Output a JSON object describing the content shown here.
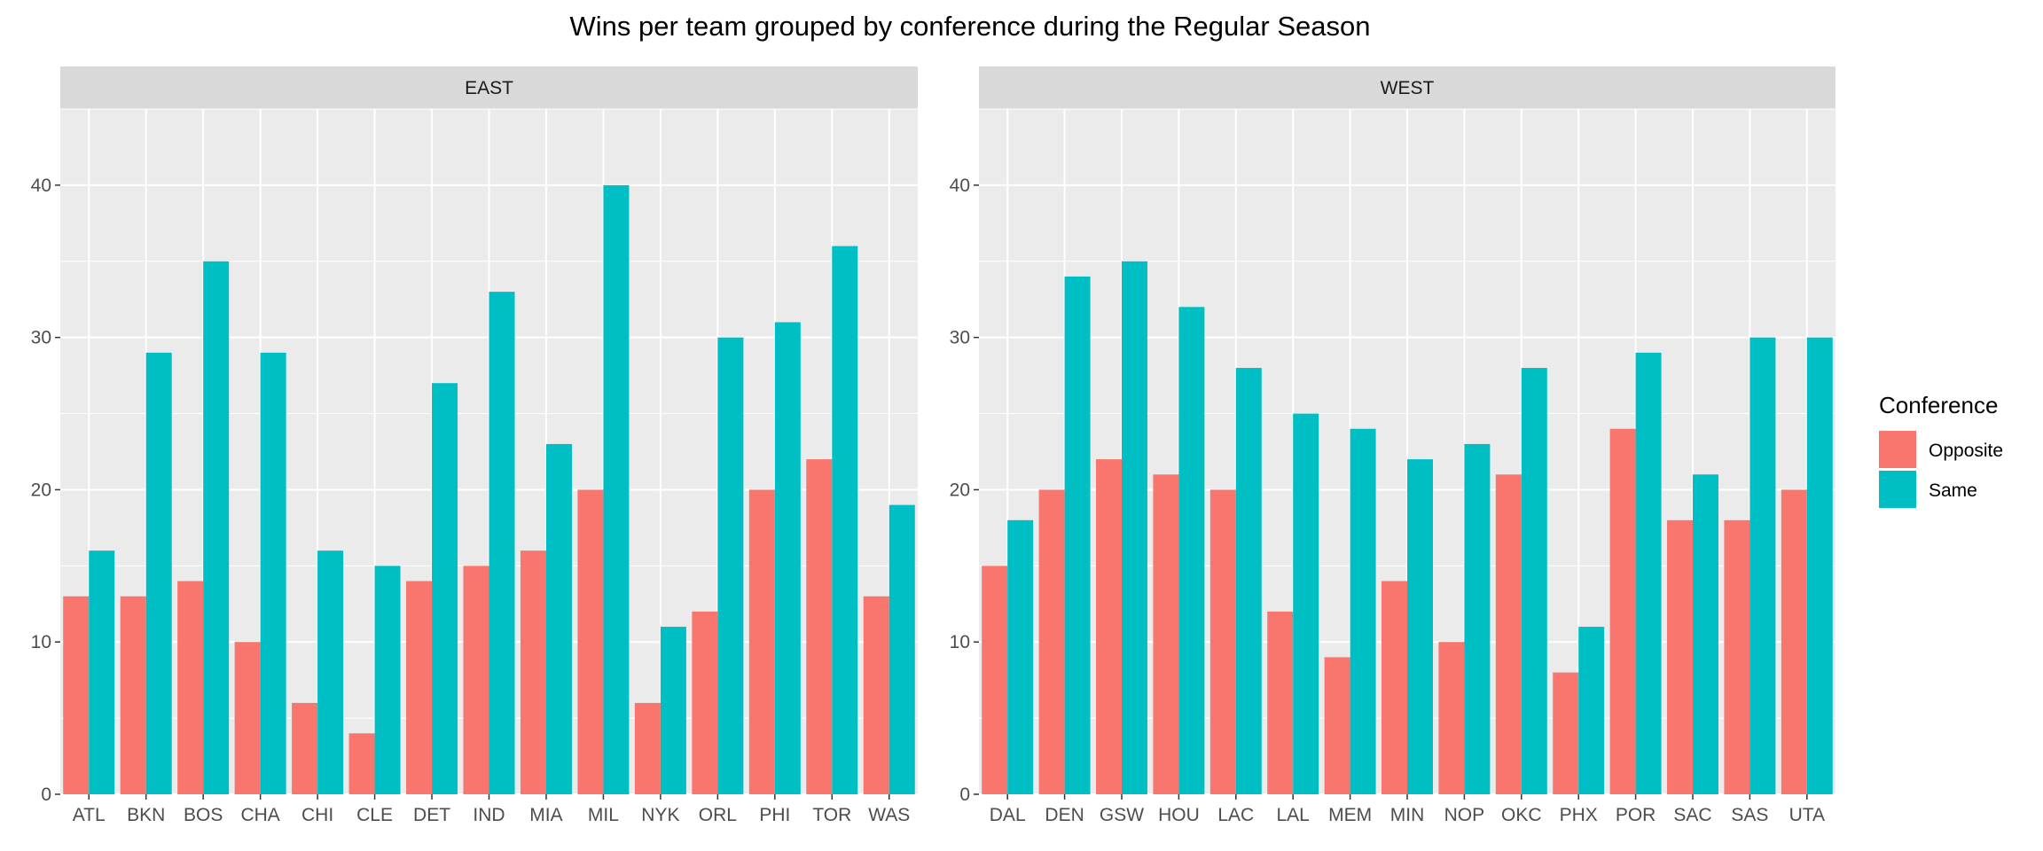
{
  "chart_data": {
    "type": "bar",
    "title": "Wins per team grouped by conference during the Regular Season",
    "xlabel": "",
    "ylabel": "",
    "ylim": [
      0,
      45
    ],
    "y_ticks": [
      0,
      10,
      20,
      30,
      40
    ],
    "grid": true,
    "legend": {
      "title": "Conference",
      "position": "right",
      "entries": [
        {
          "name": "Opposite",
          "color": "#F8766D"
        },
        {
          "name": "Same",
          "color": "#00BFC4"
        }
      ]
    },
    "panels": [
      {
        "strip": "EAST",
        "categories": [
          "ATL",
          "BKN",
          "BOS",
          "CHA",
          "CHI",
          "CLE",
          "DET",
          "IND",
          "MIA",
          "MIL",
          "NYK",
          "ORL",
          "PHI",
          "TOR",
          "WAS"
        ],
        "series": [
          {
            "name": "Opposite",
            "values": [
              13,
              13,
              14,
              10,
              6,
              4,
              14,
              15,
              16,
              20,
              6,
              12,
              20,
              22,
              13
            ]
          },
          {
            "name": "Same",
            "values": [
              16,
              29,
              35,
              29,
              16,
              15,
              27,
              33,
              23,
              40,
              11,
              30,
              31,
              36,
              19
            ]
          }
        ]
      },
      {
        "strip": "WEST",
        "categories": [
          "DAL",
          "DEN",
          "GSW",
          "HOU",
          "LAC",
          "LAL",
          "MEM",
          "MIN",
          "NOP",
          "OKC",
          "PHX",
          "POR",
          "SAC",
          "SAS",
          "UTA"
        ],
        "series": [
          {
            "name": "Opposite",
            "values": [
              15,
              20,
              22,
              21,
              20,
              12,
              9,
              14,
              10,
              21,
              8,
              24,
              18,
              18,
              20
            ]
          },
          {
            "name": "Same",
            "values": [
              18,
              34,
              35,
              32,
              28,
              25,
              24,
              22,
              23,
              28,
              11,
              29,
              21,
              30,
              30
            ]
          }
        ]
      }
    ]
  }
}
